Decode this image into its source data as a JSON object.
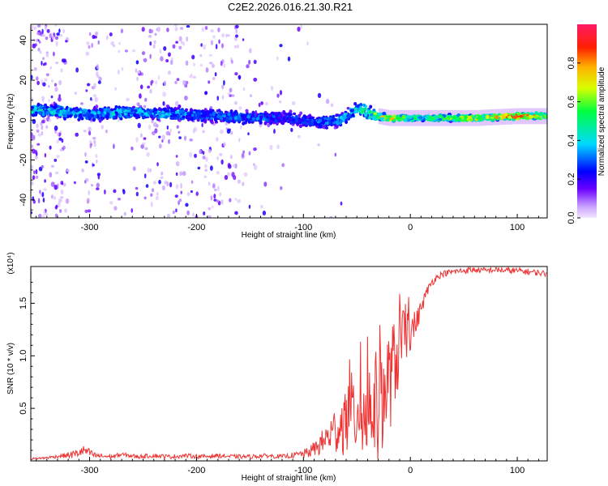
{
  "figure": {
    "title": "C2E2.2026.016.21.30.R21"
  },
  "chart_data": [
    {
      "type": "heatmap",
      "xlabel": "Height of straight line (km)",
      "ylabel": "Frequency (Hz)",
      "xlim": [
        -355,
        128
      ],
      "ylim": [
        -49,
        48
      ],
      "xticks": [
        -300,
        -200,
        -100,
        0,
        100
      ],
      "xtick_labels": [
        "-300",
        "-200",
        "-100",
        "0",
        "100"
      ],
      "yticks": [
        -40,
        -20,
        0,
        20,
        40
      ],
      "ytick_labels": [
        "-40",
        "-20",
        "0",
        "20",
        "40"
      ],
      "colorbar": {
        "label": "Normalized spectral amplitude",
        "range": [
          0,
          1
        ],
        "ticks": [
          0.0,
          0.2,
          0.4,
          0.6,
          0.8
        ],
        "tick_labels": [
          "0.0",
          "0.2",
          "0.4",
          "0.6",
          "0.8"
        ]
      },
      "ridge": {
        "x": [
          -350,
          -320,
          -300,
          -260,
          -220,
          -180,
          -150,
          -120,
          -100,
          -80,
          -65,
          -50,
          -40,
          -30,
          -20,
          -10,
          0,
          20,
          60,
          100,
          128
        ],
        "freq": [
          5,
          4,
          3,
          4,
          3,
          2,
          1,
          1,
          0,
          -1,
          0,
          6,
          4,
          2,
          1,
          1,
          1,
          1,
          1,
          2,
          2
        ],
        "peak_amplitude": [
          0.45,
          0.45,
          0.4,
          0.42,
          0.38,
          0.35,
          0.35,
          0.3,
          0.32,
          0.35,
          0.4,
          0.48,
          0.55,
          0.7,
          0.85,
          0.7,
          0.55,
          0.6,
          0.75,
          0.95,
          0.7
        ]
      }
    },
    {
      "type": "line",
      "xlabel": "Height of straight line (km)",
      "ylabel": "SNR (10 * v/v)",
      "y_multiplier_label": "(x10⁴)",
      "xlim": [
        -355,
        128
      ],
      "ylim": [
        0,
        1.85
      ],
      "xticks": [
        -300,
        -200,
        -100,
        0,
        100
      ],
      "xtick_labels": [
        "-300",
        "-200",
        "-100",
        "0",
        "100"
      ],
      "yticks": [
        0.5,
        1.0,
        1.5
      ],
      "ytick_labels": [
        "0.5",
        "1.0",
        "1.5"
      ],
      "series": [
        {
          "name": "SNR",
          "color": "#ee3333",
          "x": [
            -355,
            -340,
            -325,
            -315,
            -305,
            -295,
            -280,
            -270,
            -255,
            -240,
            -225,
            -210,
            -195,
            -180,
            -165,
            -150,
            -135,
            -120,
            -105,
            -95,
            -85,
            -75,
            -65,
            -55,
            -48,
            -42,
            -36,
            -30,
            -25,
            -20,
            -15,
            -10,
            -5,
            0,
            5,
            10,
            15,
            20,
            25,
            30,
            40,
            50,
            60,
            70,
            80,
            90,
            100,
            110,
            120,
            128
          ],
          "values": [
            0.02,
            0.03,
            0.05,
            0.06,
            0.1,
            0.05,
            0.04,
            0.06,
            0.04,
            0.05,
            0.04,
            0.05,
            0.04,
            0.05,
            0.04,
            0.04,
            0.05,
            0.04,
            0.06,
            0.08,
            0.15,
            0.25,
            0.35,
            0.45,
            0.5,
            0.45,
            0.55,
            0.5,
            0.65,
            0.75,
            0.9,
            1.1,
            1.2,
            1.25,
            1.3,
            1.45,
            1.6,
            1.7,
            1.75,
            1.78,
            1.8,
            1.81,
            1.82,
            1.81,
            1.82,
            1.81,
            1.81,
            1.8,
            1.79,
            1.78
          ],
          "noise_amplitude": [
            0.01,
            0.01,
            0.02,
            0.04,
            0.05,
            0.03,
            0.02,
            0.02,
            0.02,
            0.02,
            0.02,
            0.02,
            0.02,
            0.02,
            0.02,
            0.02,
            0.02,
            0.02,
            0.03,
            0.05,
            0.1,
            0.18,
            0.3,
            0.4,
            0.45,
            0.5,
            0.5,
            0.55,
            0.5,
            0.5,
            0.45,
            0.35,
            0.3,
            0.2,
            0.12,
            0.08,
            0.05,
            0.04,
            0.03,
            0.03,
            0.03,
            0.03,
            0.03,
            0.03,
            0.03,
            0.03,
            0.03,
            0.03,
            0.03,
            0.03
          ]
        }
      ]
    }
  ]
}
